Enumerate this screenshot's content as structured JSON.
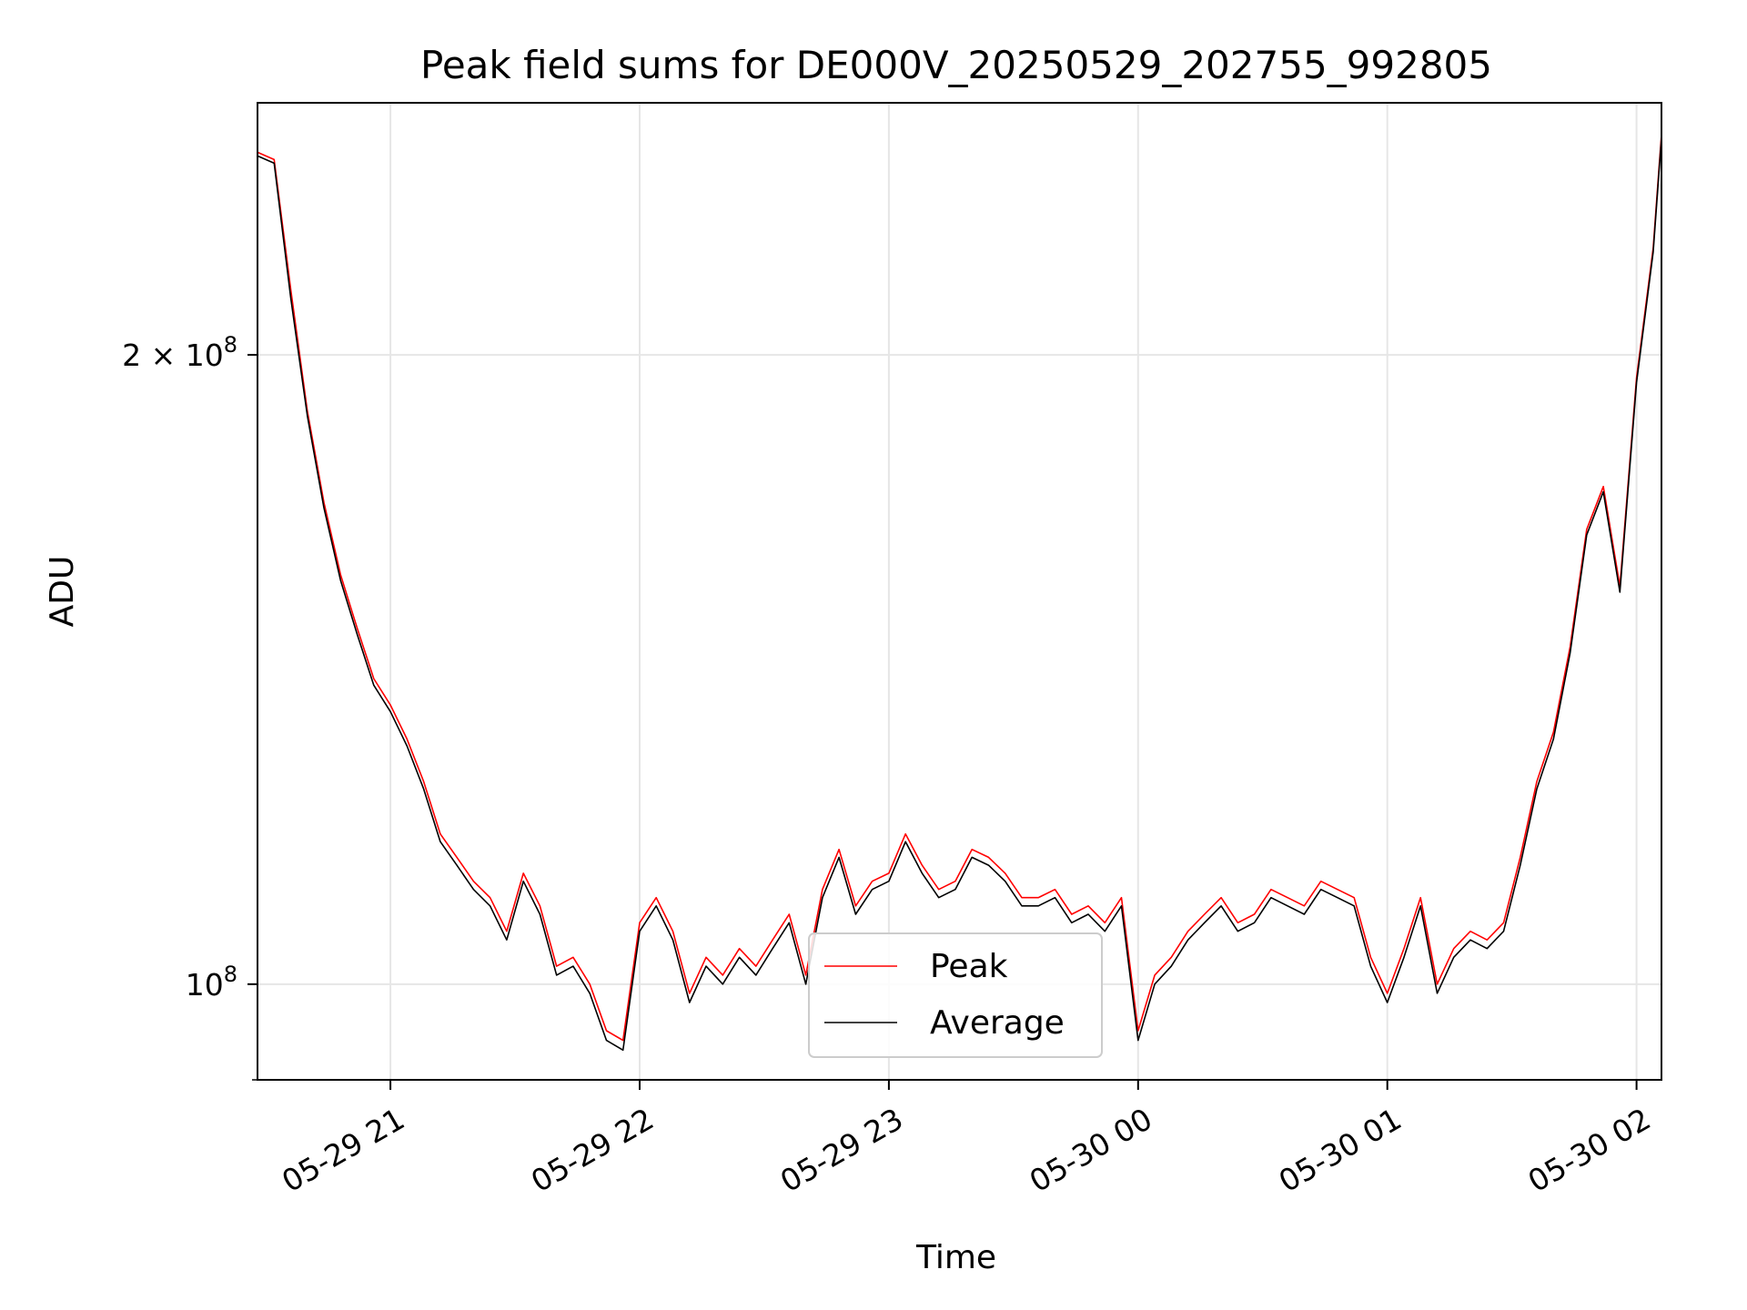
{
  "chart_data": {
    "type": "line",
    "title": "Peak field sums for DE000V_20250529_202755_992805",
    "xlabel": "Time",
    "ylabel": "ADU",
    "yscale": "log",
    "ylim": [
      90000000,
      264000000
    ],
    "xlim": [
      "2025-05-29 20:28",
      "2025-05-30 02:06"
    ],
    "grid": true,
    "legend_position": "lower center",
    "x_ticks": [
      {
        "t": "2025-05-29 21:00",
        "label": "05-29 21"
      },
      {
        "t": "2025-05-29 22:00",
        "label": "05-29 22"
      },
      {
        "t": "2025-05-29 23:00",
        "label": "05-29 23"
      },
      {
        "t": "2025-05-30 00:00",
        "label": "05-30 00"
      },
      {
        "t": "2025-05-30 01:00",
        "label": "05-30 01"
      },
      {
        "t": "2025-05-30 02:00",
        "label": "05-30 02"
      }
    ],
    "y_ticks": [
      {
        "value": 200000000,
        "label_base": "2 × 10",
        "label_exp": "8"
      },
      {
        "value": 100000000,
        "label_base": "10",
        "label_exp": "8"
      }
    ],
    "y_minor_ticks": [
      90000000
    ],
    "x": [
      "2025-05-29 20:28",
      "2025-05-29 20:32",
      "2025-05-29 20:36",
      "2025-05-29 20:40",
      "2025-05-29 20:44",
      "2025-05-29 20:48",
      "2025-05-29 20:52",
      "2025-05-29 20:56",
      "2025-05-29 21:00",
      "2025-05-29 21:04",
      "2025-05-29 21:08",
      "2025-05-29 21:12",
      "2025-05-29 21:16",
      "2025-05-29 21:20",
      "2025-05-29 21:24",
      "2025-05-29 21:28",
      "2025-05-29 21:32",
      "2025-05-29 21:36",
      "2025-05-29 21:40",
      "2025-05-29 21:44",
      "2025-05-29 21:48",
      "2025-05-29 21:52",
      "2025-05-29 21:56",
      "2025-05-29 22:00",
      "2025-05-29 22:04",
      "2025-05-29 22:08",
      "2025-05-29 22:12",
      "2025-05-29 22:16",
      "2025-05-29 22:20",
      "2025-05-29 22:24",
      "2025-05-29 22:28",
      "2025-05-29 22:32",
      "2025-05-29 22:36",
      "2025-05-29 22:40",
      "2025-05-29 22:44",
      "2025-05-29 22:48",
      "2025-05-29 22:52",
      "2025-05-29 22:56",
      "2025-05-29 23:00",
      "2025-05-29 23:04",
      "2025-05-29 23:08",
      "2025-05-29 23:12",
      "2025-05-29 23:16",
      "2025-05-29 23:20",
      "2025-05-29 23:24",
      "2025-05-29 23:28",
      "2025-05-29 23:32",
      "2025-05-29 23:36",
      "2025-05-29 23:40",
      "2025-05-29 23:44",
      "2025-05-29 23:48",
      "2025-05-29 23:52",
      "2025-05-29 23:56",
      "2025-05-30 00:00",
      "2025-05-30 00:04",
      "2025-05-30 00:08",
      "2025-05-30 00:12",
      "2025-05-30 00:16",
      "2025-05-30 00:20",
      "2025-05-30 00:24",
      "2025-05-30 00:28",
      "2025-05-30 00:32",
      "2025-05-30 00:36",
      "2025-05-30 00:40",
      "2025-05-30 00:44",
      "2025-05-30 00:48",
      "2025-05-30 00:52",
      "2025-05-30 00:56",
      "2025-05-30 01:00",
      "2025-05-30 01:04",
      "2025-05-30 01:08",
      "2025-05-30 01:12",
      "2025-05-30 01:16",
      "2025-05-30 01:20",
      "2025-05-30 01:24",
      "2025-05-30 01:28",
      "2025-05-30 01:32",
      "2025-05-30 01:36",
      "2025-05-30 01:40",
      "2025-05-30 01:44",
      "2025-05-30 01:48",
      "2025-05-30 01:52",
      "2025-05-30 01:56",
      "2025-05-30 02:00",
      "2025-05-30 02:04",
      "2025-05-30 02:06"
    ],
    "series": [
      {
        "name": "Peak",
        "color": "#ff0000",
        "values": [
          250000000,
          248000000,
          215000000,
          188000000,
          170000000,
          157000000,
          148000000,
          140000000,
          136000000,
          131000000,
          125000000,
          118000000,
          115000000,
          112000000,
          110000000,
          106000000,
          113000000,
          109000000,
          102000000,
          103000000,
          100000000,
          95000000,
          94000000,
          107000000,
          110000000,
          106000000,
          99000000,
          103000000,
          101000000,
          104000000,
          102000000,
          105000000,
          108000000,
          101000000,
          111000000,
          116000000,
          109000000,
          112000000,
          113000000,
          118000000,
          114000000,
          111000000,
          112000000,
          116000000,
          115000000,
          113000000,
          110000000,
          110000000,
          111000000,
          108000000,
          109000000,
          107000000,
          110000000,
          95000000,
          101000000,
          103000000,
          106000000,
          108000000,
          110000000,
          107000000,
          108000000,
          111000000,
          110000000,
          109000000,
          112000000,
          111000000,
          110000000,
          103000000,
          99000000,
          104000000,
          110000000,
          100000000,
          104000000,
          106000000,
          105000000,
          107000000,
          115000000,
          125000000,
          132000000,
          145000000,
          165000000,
          173000000,
          155000000,
          195000000,
          225000000,
          255000000
        ]
      },
      {
        "name": "Average",
        "color": "#000000",
        "values": [
          249000000,
          247000000,
          213000000,
          187000000,
          169000000,
          156000000,
          147000000,
          139000000,
          135000000,
          130000000,
          124000000,
          117000000,
          114000000,
          111000000,
          109000000,
          105000000,
          112000000,
          108000000,
          101000000,
          102000000,
          99000000,
          94000000,
          93000000,
          106000000,
          109000000,
          105000000,
          98000000,
          102000000,
          100000000,
          103000000,
          101000000,
          104000000,
          107000000,
          100000000,
          110000000,
          115000000,
          108000000,
          111000000,
          112000000,
          117000000,
          113000000,
          110000000,
          111000000,
          115000000,
          114000000,
          112000000,
          109000000,
          109000000,
          110000000,
          107000000,
          108000000,
          106000000,
          109000000,
          94000000,
          100000000,
          102000000,
          105000000,
          107000000,
          109000000,
          106000000,
          107000000,
          110000000,
          109000000,
          108000000,
          111000000,
          110000000,
          109000000,
          102000000,
          98000000,
          103000000,
          109000000,
          99000000,
          103000000,
          105000000,
          104000000,
          106000000,
          114000000,
          124000000,
          131000000,
          144000000,
          164000000,
          172000000,
          154000000,
          194000000,
          224000000,
          254000000
        ]
      }
    ]
  }
}
